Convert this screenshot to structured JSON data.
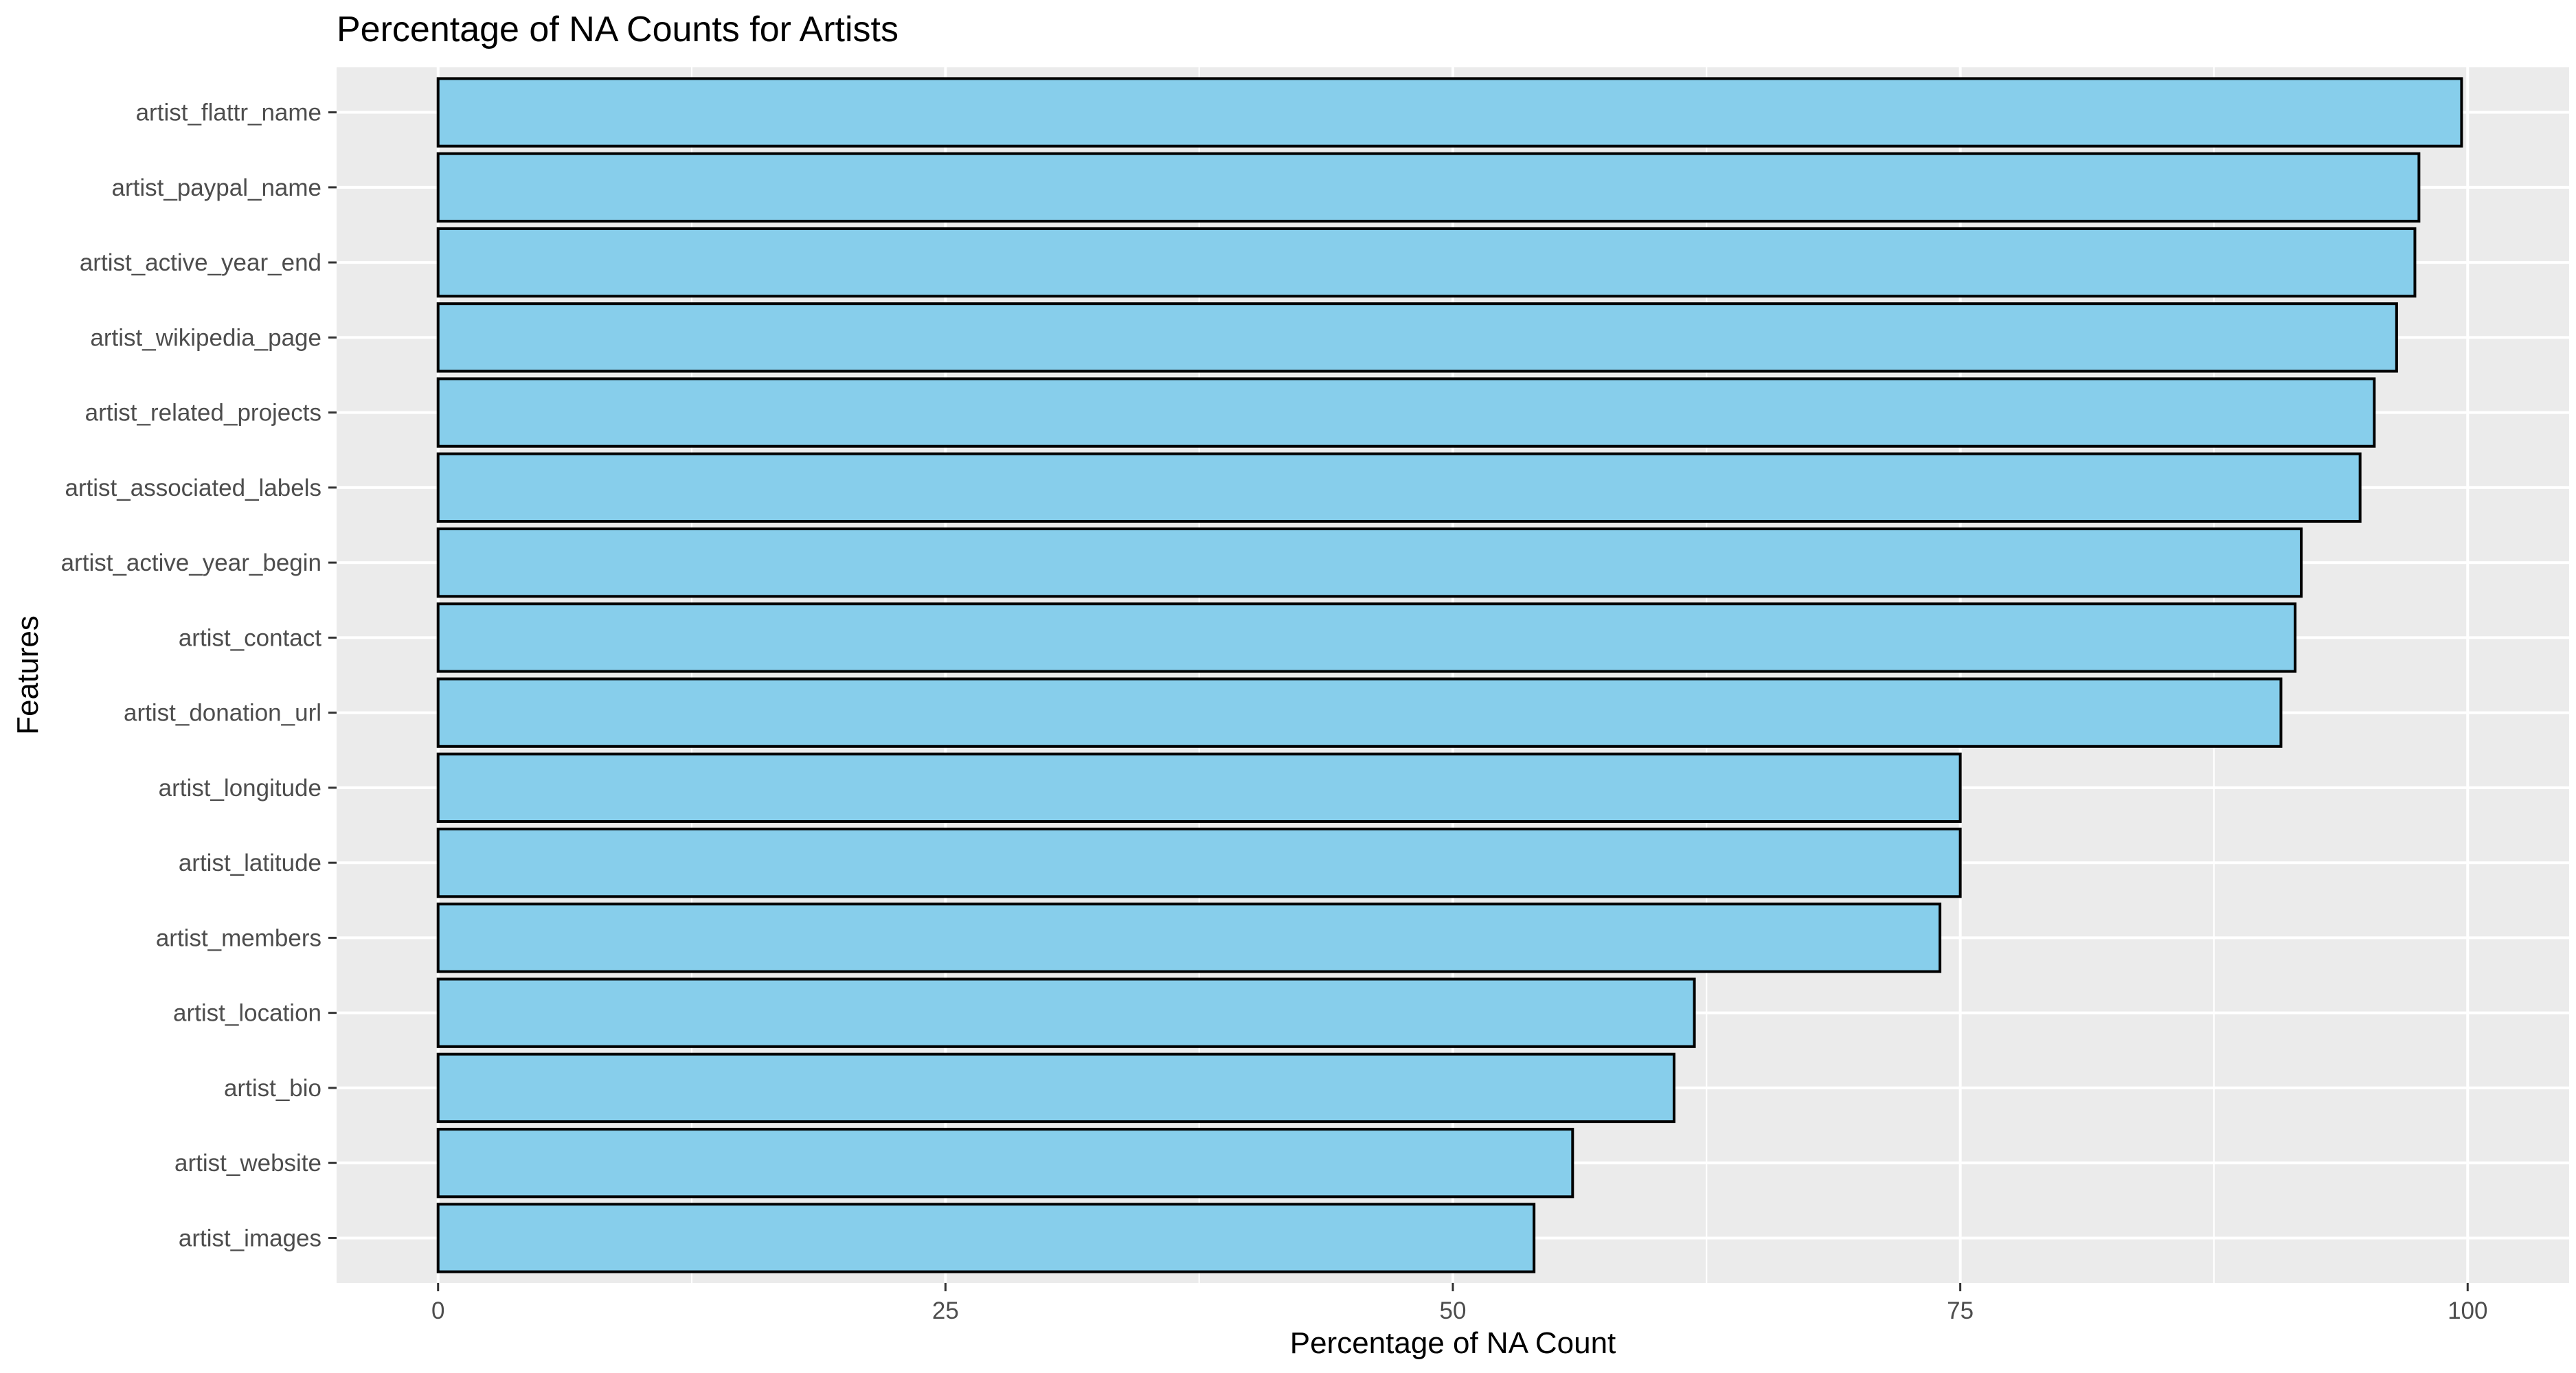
{
  "chart_data": {
    "type": "bar",
    "orientation": "horizontal",
    "title": "Percentage of NA Counts for Artists",
    "xlabel": "Percentage of NA Count",
    "ylabel": "Features",
    "xlim": [
      -5,
      105
    ],
    "x_ticks": [
      0,
      25,
      50,
      75,
      100
    ],
    "x_tick_labels": [
      "0",
      "25",
      "50",
      "75",
      "100"
    ],
    "grid": true,
    "legend": "none",
    "colors": {
      "bar_fill": "#87CEEB",
      "bar_stroke": "#000000",
      "panel_bg": "#EBEBEB",
      "grid": "#FFFFFF"
    },
    "categories": [
      "artist_flattr_name",
      "artist_paypal_name",
      "artist_active_year_end",
      "artist_wikipedia_page",
      "artist_related_projects",
      "artist_associated_labels",
      "artist_active_year_begin",
      "artist_contact",
      "artist_donation_url",
      "artist_longitude",
      "artist_latitude",
      "artist_members",
      "artist_location",
      "artist_bio",
      "artist_website",
      "artist_images"
    ],
    "values": [
      99.7,
      97.6,
      97.4,
      96.5,
      95.4,
      94.7,
      91.8,
      91.5,
      90.8,
      75.0,
      75.0,
      74.0,
      61.9,
      60.9,
      55.9,
      54.0
    ]
  }
}
